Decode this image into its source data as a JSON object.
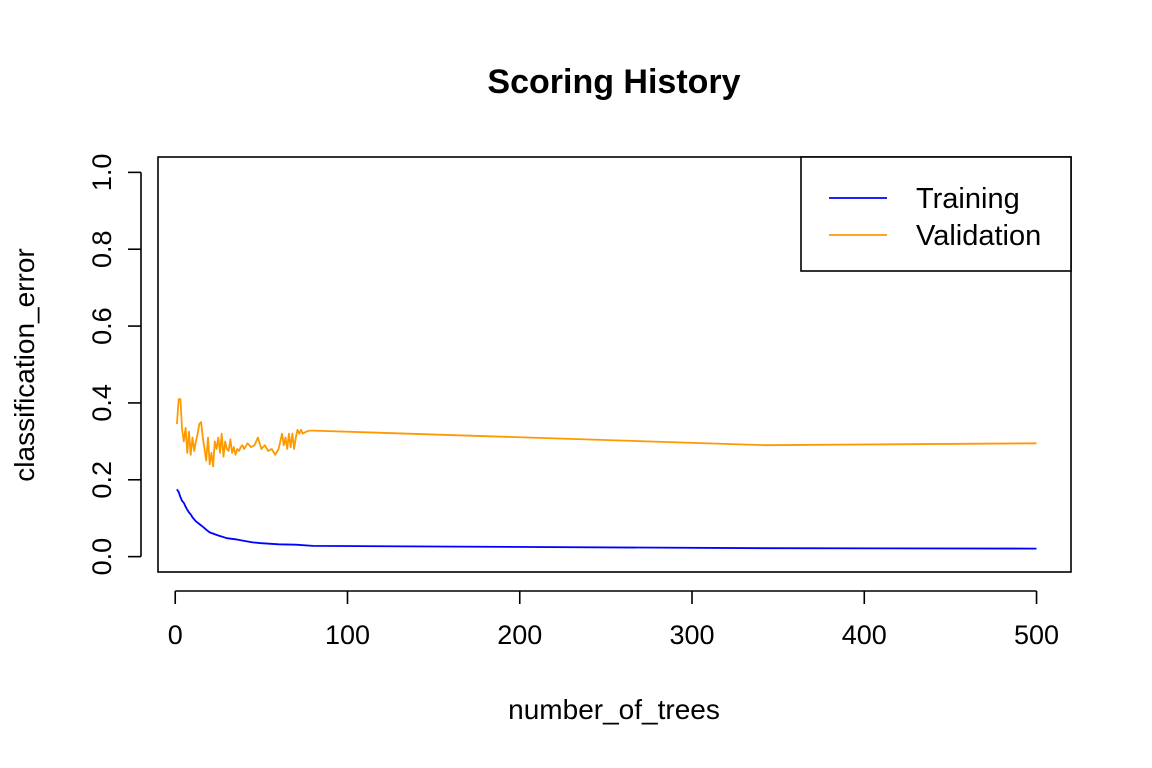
{
  "chart_data": {
    "type": "line",
    "title": "Scoring History",
    "xlabel": "number_of_trees",
    "ylabel": "classification_error",
    "xlim": [
      -10,
      520
    ],
    "ylim": [
      -0.04,
      1.04
    ],
    "xticks": [
      0,
      100,
      200,
      300,
      400,
      500
    ],
    "yticks": [
      0.0,
      0.2,
      0.4,
      0.6,
      0.8,
      1.0
    ],
    "xtick_labels": [
      "0",
      "100",
      "200",
      "300",
      "400",
      "500"
    ],
    "ytick_labels": [
      "0.0",
      "0.2",
      "0.4",
      "0.6",
      "0.8",
      "1.0"
    ],
    "grid": false,
    "legend_position": "top-right",
    "series": [
      {
        "name": "Training",
        "color": "#0000ff",
        "x": [
          1,
          2,
          3,
          4,
          5,
          6,
          7,
          8,
          9,
          10,
          12,
          14,
          16,
          18,
          20,
          25,
          30,
          35,
          40,
          45,
          50,
          60,
          70,
          80,
          343,
          500
        ],
        "y": [
          0.175,
          0.168,
          0.155,
          0.145,
          0.14,
          0.13,
          0.122,
          0.115,
          0.11,
          0.102,
          0.092,
          0.085,
          0.078,
          0.07,
          0.063,
          0.055,
          0.048,
          0.045,
          0.041,
          0.037,
          0.035,
          0.032,
          0.031,
          0.028,
          0.022,
          0.021
        ]
      },
      {
        "name": "Validation",
        "color": "#ff9900",
        "x": [
          1,
          2,
          3,
          4,
          5,
          6,
          7,
          8,
          9,
          10,
          11,
          12,
          13,
          14,
          15,
          16,
          17,
          18,
          19,
          20,
          21,
          22,
          23,
          24,
          25,
          26,
          27,
          28,
          29,
          30,
          31,
          32,
          33,
          34,
          35,
          36,
          37,
          38,
          39,
          40,
          42,
          44,
          46,
          48,
          50,
          52,
          54,
          56,
          58,
          60,
          62,
          63,
          64,
          65,
          66,
          67,
          68,
          69,
          70,
          71,
          72,
          73,
          74,
          76,
          78,
          80,
          343,
          500
        ],
        "y": [
          0.345,
          0.41,
          0.41,
          0.33,
          0.3,
          0.335,
          0.27,
          0.325,
          0.265,
          0.31,
          0.275,
          0.3,
          0.32,
          0.345,
          0.35,
          0.31,
          0.28,
          0.25,
          0.31,
          0.24,
          0.27,
          0.235,
          0.3,
          0.28,
          0.31,
          0.27,
          0.32,
          0.26,
          0.3,
          0.28,
          0.275,
          0.305,
          0.27,
          0.285,
          0.265,
          0.28,
          0.275,
          0.285,
          0.29,
          0.28,
          0.295,
          0.285,
          0.29,
          0.31,
          0.28,
          0.29,
          0.275,
          0.28,
          0.265,
          0.28,
          0.32,
          0.29,
          0.31,
          0.28,
          0.32,
          0.285,
          0.32,
          0.28,
          0.31,
          0.33,
          0.32,
          0.33,
          0.32,
          0.325,
          0.328,
          0.328,
          0.29,
          0.295
        ]
      }
    ]
  }
}
